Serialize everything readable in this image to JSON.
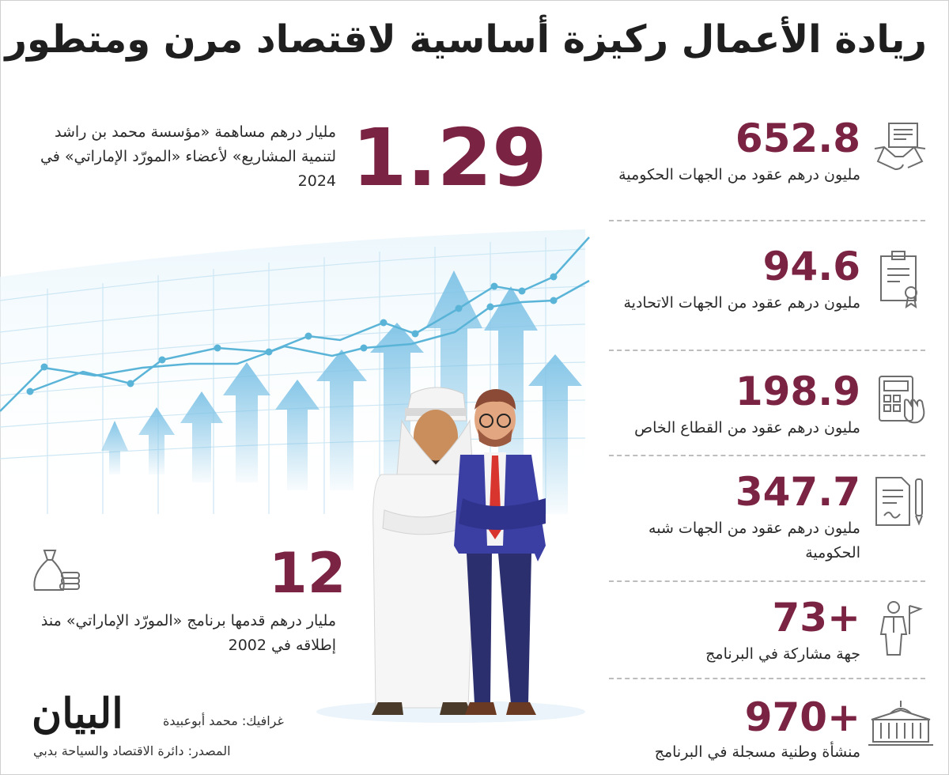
{
  "title": "ريادة الأعمال ركيزة أساسية لاقتصاد مرن ومتطور",
  "highlight_top": {
    "value": "1.29",
    "text": "مليار درهم مساهمة «مؤسسة محمد بن راشد لتنمية المشاريع» لأعضاء «المورّد الإماراتي» في 2024"
  },
  "highlight_bottom": {
    "value": "12",
    "text": "مليار درهم قدمها برنامج «المورّد الإماراتي» منذ إطلاقه في 2002",
    "icon": "money-bag-icon"
  },
  "stats": [
    {
      "value": "652.8",
      "text": "مليون درهم عقود من الجهات الحكومية",
      "icon": "handshake-icon"
    },
    {
      "value": "94.6",
      "text": "مليون درهم عقود من الجهات الاتحادية",
      "icon": "certificate-icon"
    },
    {
      "value": "198.9",
      "text": "مليون درهم عقود من القطاع الخاص",
      "icon": "calculator-icon"
    },
    {
      "value": "347.7",
      "text": "مليون درهم عقود من الجهات شبه الحكومية",
      "icon": "contract-pen-icon"
    },
    {
      "value": "+73",
      "text": "جهة مشاركة في البرنامج",
      "icon": "person-flag-icon"
    },
    {
      "value": "+970",
      "text": "منشأة وطنية مسجلة في البرنامج",
      "icon": "building-icon"
    }
  ],
  "credits": {
    "logo": "البيان",
    "graphics": "غرافيك: محمد أبوعبيدة",
    "source": "المصدر: دائرة الاقتصاد والسياحة بدبي"
  },
  "colors": {
    "accent": "#7b2342",
    "chart_blue": "#5ab4d8"
  }
}
